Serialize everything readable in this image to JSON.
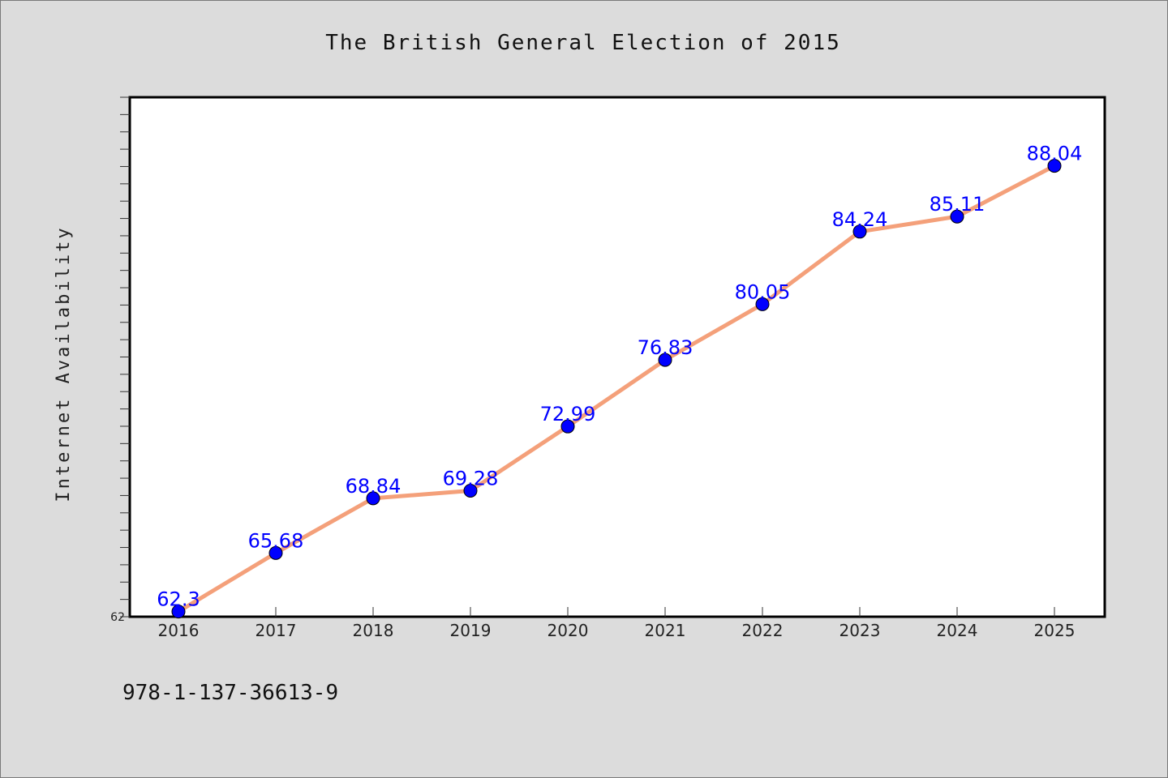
{
  "chart_data": {
    "type": "line",
    "title": "The British General Election of 2015",
    "xlabel": "",
    "ylabel": "Internet Availability",
    "x": [
      "2016",
      "2017",
      "2018",
      "2019",
      "2020",
      "2021",
      "2022",
      "2023",
      "2024",
      "2025"
    ],
    "series": [
      {
        "values": [
          62.3,
          65.68,
          68.84,
          69.28,
          72.99,
          76.83,
          80.05,
          84.24,
          85.11,
          88.04
        ],
        "labels": [
          "62.3",
          "65.68",
          "68.84",
          "69.28",
          "72.99",
          "76.83",
          "80.05",
          "84.24",
          "85.11",
          "88.04"
        ],
        "line_color": "#f4a07a",
        "marker_color": "#0000ff"
      }
    ],
    "ylim": [
      62,
      92
    ],
    "y_tick_labels": [
      "62"
    ],
    "grid": false,
    "label_color": "#0000ff"
  },
  "footer": {
    "isbn": "978-1-137-36613-9"
  }
}
